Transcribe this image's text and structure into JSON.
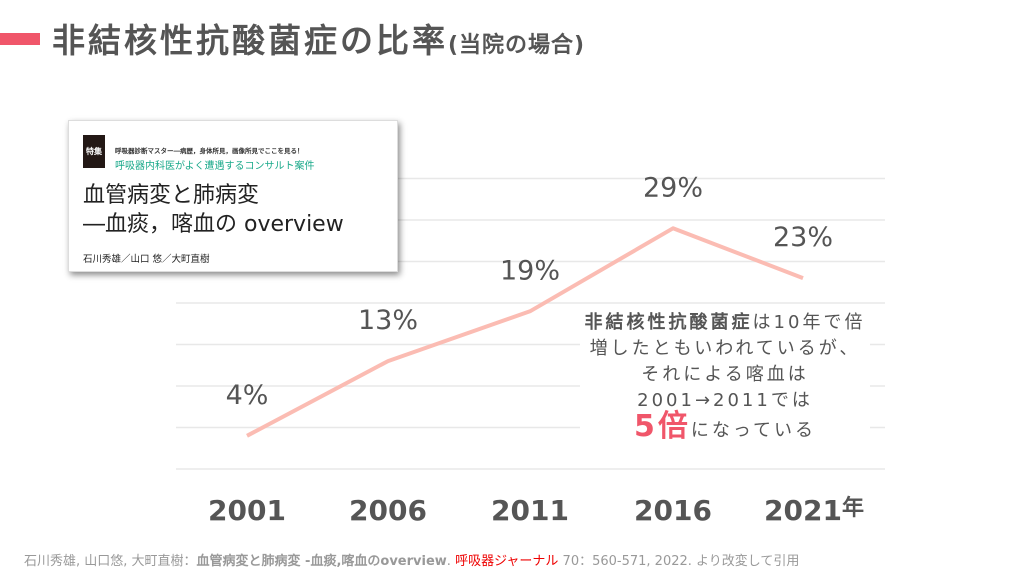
{
  "header": {
    "title": "非結核性抗酸菌症の比率",
    "subtitle": "(当院の場合)",
    "accent": "#f0566a"
  },
  "article": {
    "tag": "特集",
    "series": "呼吸器診断マスター―病歴，身体所見，画像所見でここを見る！",
    "series_sub": "呼吸器内科医がよく遭遇するコンサルト案件",
    "title_line1": "血管病変と肺病変",
    "title_line2": "―血痰，喀血の overview",
    "authors": "石川秀雄／山口 悠／大町直樹"
  },
  "chart_data": {
    "type": "line",
    "x": [
      "2001",
      "2006",
      "2011",
      "2016",
      "2021"
    ],
    "x_unit": "年",
    "values": [
      4,
      13,
      19,
      29,
      23
    ],
    "labels": [
      "4%",
      "13%",
      "19%",
      "29%",
      "23%"
    ],
    "ylim": [
      0,
      35
    ],
    "grid": true,
    "line_color": "#fbbcb3"
  },
  "note": {
    "bold": "非結核性抗酸菌症",
    "text1": "は10年で倍増したともいわれているが、それによる喀血は2001→2011では",
    "emph": "5倍",
    "text2": "になっている"
  },
  "citation": {
    "authors": "石川秀雄, 山口悠, 大町直樹：",
    "title": "血管病変と肺病変 -血痰,喀血のoverview",
    "sep": ". ",
    "journal": "呼吸器ジャーナル",
    "rest": " 70：560-571, 2022. より改変して引用"
  }
}
